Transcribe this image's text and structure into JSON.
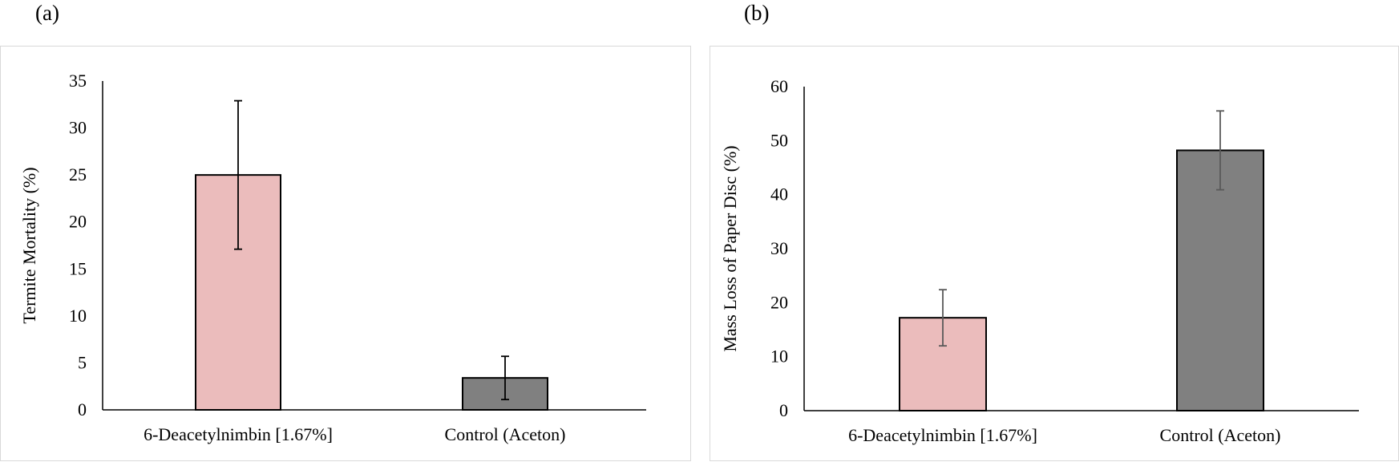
{
  "panels": {
    "a": "(a)",
    "b": "(b)"
  },
  "chart_data": [
    {
      "type": "bar",
      "panel": "(a)",
      "title": "",
      "xlabel": "",
      "ylabel": "Termite Mortality (%)",
      "categories": [
        "6-Deacetylnimbin [1.67%]",
        "Control (Aceton)"
      ],
      "values": [
        25.0,
        3.4
      ],
      "errors": [
        7.9,
        2.3
      ],
      "ylim": [
        0,
        35
      ],
      "yticks": [
        0,
        5,
        10,
        15,
        20,
        25,
        30,
        35
      ],
      "grid": false,
      "legend": "none",
      "colors": [
        "#ebbcbc",
        "#808080"
      ],
      "error_color": "#000000"
    },
    {
      "type": "bar",
      "panel": "(b)",
      "title": "",
      "xlabel": "",
      "ylabel": "Mass Loss of Paper Disc (%)",
      "categories": [
        "6-Deacetylnimbin [1.67%]",
        "Control (Aceton)"
      ],
      "values": [
        17.2,
        48.2
      ],
      "errors": [
        5.2,
        7.3
      ],
      "ylim": [
        0,
        60
      ],
      "yticks": [
        0,
        10,
        20,
        30,
        40,
        50,
        60
      ],
      "grid": false,
      "legend": "none",
      "colors": [
        "#ebbcbc",
        "#808080"
      ],
      "error_color": "#595959"
    }
  ]
}
